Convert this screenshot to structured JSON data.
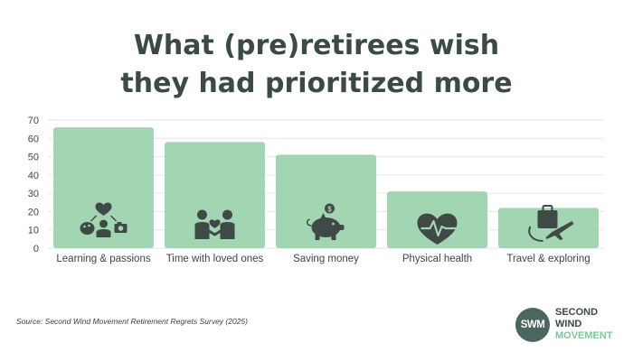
{
  "title_lines": [
    "What (pre)retirees wish",
    "they had prioritized more"
  ],
  "source": "Source: Second Wind Movement Retirement Regrets Survey (2025)",
  "logo": {
    "initials": "SWM",
    "line1": "SECOND",
    "line2": "WIND",
    "line3": "MOVEMENT"
  },
  "colors": {
    "bar": "#a2d5b1",
    "icon": "#3f4a47",
    "grid": "#e6e6e6",
    "axis_text": "#444444",
    "title": "#3a4a47",
    "logo_circle": "#4b6560",
    "logo_accent": "#7dc79b"
  },
  "chart_data": {
    "type": "bar",
    "title": "What (pre)retirees wish they had prioritized more",
    "categories": [
      "Learning & passions",
      "Time with loved ones",
      "Saving money",
      "Physical health",
      "Travel & exploring"
    ],
    "values": [
      66,
      58,
      51,
      31,
      22
    ],
    "icons": [
      "hobbies-icon",
      "loved-ones-icon",
      "piggy-bank-icon",
      "heartbeat-icon",
      "suitcase-plane-icon"
    ],
    "yticks": [
      0,
      10,
      20,
      30,
      40,
      50,
      60,
      70
    ],
    "ylim": [
      0,
      70
    ],
    "xlabel": "",
    "ylabel": "",
    "grid": true,
    "legend": "none"
  }
}
